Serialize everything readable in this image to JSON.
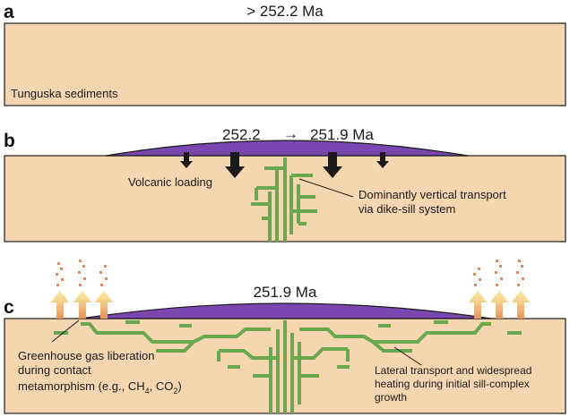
{
  "panels": {
    "a": {
      "letter": "a",
      "age": "> 252.2 Ma",
      "sediment_label": "Tunguska sediments"
    },
    "b": {
      "letter": "b",
      "age_start": "252.2",
      "age_arrow": "→",
      "age_end": "251.9 Ma",
      "loading_label": "Volcanic loading",
      "transport_label_line1": "Dominantly vertical transport",
      "transport_label_line2": "via dike-sill system"
    },
    "c": {
      "letter": "c",
      "age": "251.9 Ma",
      "gas_label_line1": "Greenhouse gas liberation",
      "gas_label_line2": "during contact",
      "gas_label_line3_prefix": "metamorphism (e.g., CH",
      "gas_label_ch4_sub": "4",
      "gas_label_sep": ", CO",
      "gas_label_co2_sub": "2",
      "gas_label_suffix": ")",
      "lateral_label_line1": "Lateral transport and widespread",
      "lateral_label_line2": "heating during initial sill-complex",
      "lateral_label_line3": "growth"
    }
  },
  "colors": {
    "sediment": "#f6d6b0",
    "volcanic": "#7a46b0",
    "magma": "#6aa84f",
    "gas_arrow_top": "#fff5a0",
    "gas_arrow_bottom": "#e8925a",
    "gas_dots": "#d98a5f",
    "outline": "#1a1a1a"
  }
}
